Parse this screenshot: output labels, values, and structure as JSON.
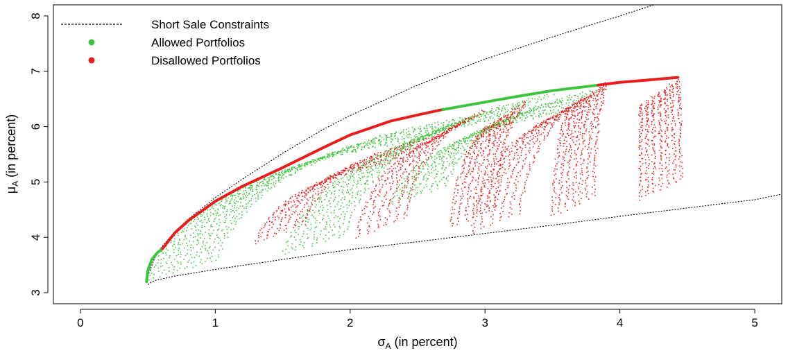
{
  "chart_data": {
    "type": "scatter",
    "title": "",
    "xlabel": "σA (in percent)",
    "xlabel_main": "σ",
    "xlabel_sub": "A",
    "xlabel_rest": " (in percent)",
    "ylabel": "μA (in percent)",
    "ylabel_main": "μ",
    "ylabel_sub": "A",
    "ylabel_rest": " (in percent)",
    "xlim": [
      -0.2,
      5.2
    ],
    "ylim": [
      2.8,
      8.2
    ],
    "xticks": [
      0,
      1,
      2,
      3,
      4,
      5
    ],
    "yticks": [
      3,
      4,
      5,
      6,
      7,
      8
    ],
    "legend": {
      "position": "top-left",
      "entries": [
        {
          "label": "Short Sale Constraints",
          "style": "dashed-line",
          "color": "#000000"
        },
        {
          "label": "Allowed Portfolios",
          "style": "point",
          "color": "#3cc43c"
        },
        {
          "label": "Disallowed Portfolios",
          "style": "point",
          "color": "#e81d1d"
        }
      ]
    },
    "series": [
      {
        "name": "Short Sale Constraints (upper boundary)",
        "kind": "dashed-line",
        "color": "#000000",
        "x": [
          0.5,
          0.55,
          0.6,
          0.7,
          0.8,
          1.0,
          1.2,
          1.5,
          1.8,
          2.0,
          2.5,
          3.0,
          3.5,
          3.8,
          4.0,
          4.25
        ],
        "y": [
          3.3,
          3.62,
          3.82,
          4.1,
          4.33,
          4.72,
          5.05,
          5.52,
          5.95,
          6.2,
          6.75,
          7.22,
          7.62,
          7.85,
          8.0,
          8.2
        ]
      },
      {
        "name": "Short Sale Constraints (lower boundary)",
        "kind": "dashed-line",
        "color": "#000000",
        "x": [
          0.5,
          0.55,
          0.7,
          1.0,
          1.5,
          2.0,
          2.5,
          3.0,
          3.5,
          4.0,
          4.5,
          5.0,
          5.2
        ],
        "y": [
          3.15,
          3.22,
          3.3,
          3.42,
          3.6,
          3.78,
          3.92,
          4.07,
          4.22,
          4.38,
          4.53,
          4.68,
          4.78
        ]
      },
      {
        "name": "Efficient frontier (allowed)",
        "kind": "thick-line",
        "color": "#3cc43c",
        "segments": [
          {
            "x": [
              0.49,
              0.5,
              0.53,
              0.57,
              0.61
            ],
            "y": [
              3.2,
              3.4,
              3.6,
              3.72,
              3.8
            ]
          },
          {
            "x": [
              2.67,
              2.9,
              3.2,
              3.5,
              3.84
            ],
            "y": [
              6.3,
              6.4,
              6.53,
              6.65,
              6.75
            ]
          }
        ]
      },
      {
        "name": "Efficient frontier (disallowed)",
        "kind": "thick-line",
        "color": "#e81d1d",
        "segments": [
          {
            "x": [
              0.61,
              0.7,
              0.8,
              1.0,
              1.2,
              1.5,
              1.8,
              2.0,
              2.3,
              2.5,
              2.67
            ],
            "y": [
              3.8,
              4.08,
              4.3,
              4.65,
              4.92,
              5.26,
              5.62,
              5.85,
              6.1,
              6.21,
              6.3
            ]
          },
          {
            "x": [
              3.84,
              4.0,
              4.2,
              4.43
            ],
            "y": [
              6.75,
              6.8,
              6.84,
              6.89
            ]
          }
        ]
      },
      {
        "name": "Allowed Portfolios",
        "kind": "point-cloud",
        "color": "#3cc43c",
        "fans": [
          {
            "base_x": 0.5,
            "base_y": 3.25,
            "n": 12,
            "top_x": 2.9,
            "top_y": 6.2,
            "spread": 0.5
          },
          {
            "base_x": 1.5,
            "base_y": 3.7,
            "n": 10,
            "top_x": 3.5,
            "top_y": 6.6,
            "spread": 0.45
          },
          {
            "base_x": 2.3,
            "base_y": 4.6,
            "n": 8,
            "top_x": 3.9,
            "top_y": 6.7,
            "spread": 0.4
          }
        ]
      },
      {
        "name": "Disallowed Portfolios",
        "kind": "point-cloud",
        "color": "#e81d1d",
        "fans": [
          {
            "base_x": 1.3,
            "base_y": 3.9,
            "n": 6,
            "top_x": 2.6,
            "top_y": 5.8,
            "spread": 0.35
          },
          {
            "base_x": 2.05,
            "base_y": 4.0,
            "n": 6,
            "top_x": 3.0,
            "top_y": 6.3,
            "spread": 0.35
          },
          {
            "base_x": 2.75,
            "base_y": 4.2,
            "n": 7,
            "top_x": 3.3,
            "top_y": 6.45,
            "spread": 0.32
          },
          {
            "base_x": 2.9,
            "base_y": 4.1,
            "n": 6,
            "top_x": 3.8,
            "top_y": 6.6,
            "spread": 0.35
          },
          {
            "base_x": 3.5,
            "base_y": 4.4,
            "n": 7,
            "top_x": 3.9,
            "top_y": 6.8,
            "spread": 0.3
          },
          {
            "base_x": 4.15,
            "base_y": 4.7,
            "n": 7,
            "top_x": 4.42,
            "top_y": 6.85,
            "spread": 0.3
          }
        ]
      }
    ]
  }
}
